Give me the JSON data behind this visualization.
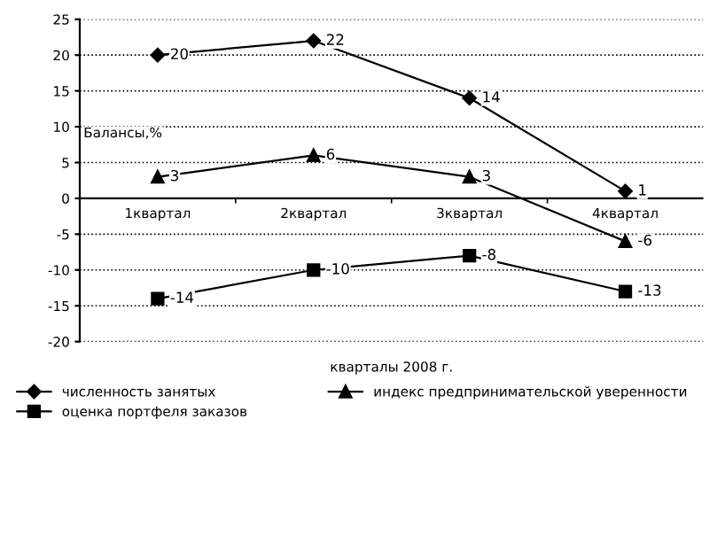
{
  "chart_data": {
    "type": "line",
    "xlabel": "кварталы 2008 г.",
    "ylabel": "Балансы,%",
    "categories": [
      "1квартал",
      "2квартал",
      "3квартал",
      "4квартал"
    ],
    "series": [
      {
        "name": "численность занятых",
        "color": "#000000",
        "marker": "diamond",
        "values": [
          20,
          22,
          14,
          1
        ]
      },
      {
        "name": "оценка портфеля заказов",
        "color": "#000000",
        "marker": "square",
        "values": [
          -14,
          -10,
          -8,
          -13
        ]
      },
      {
        "name": "индекс предпринимательской уверенности",
        "color": "#000000",
        "marker": "triangle",
        "values": [
          3,
          6,
          3,
          -6
        ]
      }
    ],
    "ylim": [
      -20,
      25
    ],
    "yticks": [
      -20,
      -15,
      -10,
      -5,
      0,
      5,
      10,
      15,
      20,
      25
    ],
    "grid": "y",
    "legend": "bottom",
    "data_labels": true,
    "line_style": "solid"
  }
}
